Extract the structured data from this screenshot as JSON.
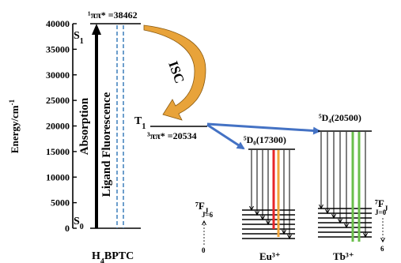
{
  "axis": {
    "label": "Energy/cm",
    "label_sup": "-1",
    "ticks": [
      "0",
      "5000",
      "10000",
      "15000",
      "20000",
      "25000",
      "30000",
      "35000",
      "40000"
    ],
    "tick_values": [
      0,
      5000,
      10000,
      15000,
      20000,
      25000,
      30000,
      35000,
      40000
    ],
    "range": [
      0,
      40000
    ]
  },
  "ligand": {
    "name": "H₄BPTC",
    "s1_label": "S",
    "s1_sub": "1",
    "s0_label": "S",
    "s0_sub": "0",
    "s1_energy_label": "¹ππ* =38462",
    "t1_label": "T",
    "t1_sub": "1",
    "t1_energy_label": "³ππ* =20534",
    "absorption_label": "Absorption",
    "fluorescence_label": "Ligand Fluorescence",
    "isc_label": "ISC",
    "s1_value": 38462,
    "t1_value": 20534
  },
  "europium": {
    "ion": "Eu³⁺",
    "emitting_level": "⁵D₀(17300)",
    "emitting_value": 17300,
    "ground_term": "⁷F",
    "ground_sub": "J",
    "j_top": "J=6",
    "j_bottom": "0"
  },
  "terbium": {
    "ion": "Tb³⁺",
    "emitting_level": "⁵D₄(20500)",
    "emitting_value": 20500,
    "ground_term": "⁷F",
    "ground_sub": "J",
    "j_top": "J=0",
    "j_bottom": "6"
  },
  "colors": {
    "arrow_blue": "#4472c4",
    "isc_orange": "#e8a33a",
    "eu_red": "#e8262a",
    "eu_orange": "#f2a33a",
    "tb_green": "#6abf4b",
    "dashed_blue": "#2e75b6"
  }
}
